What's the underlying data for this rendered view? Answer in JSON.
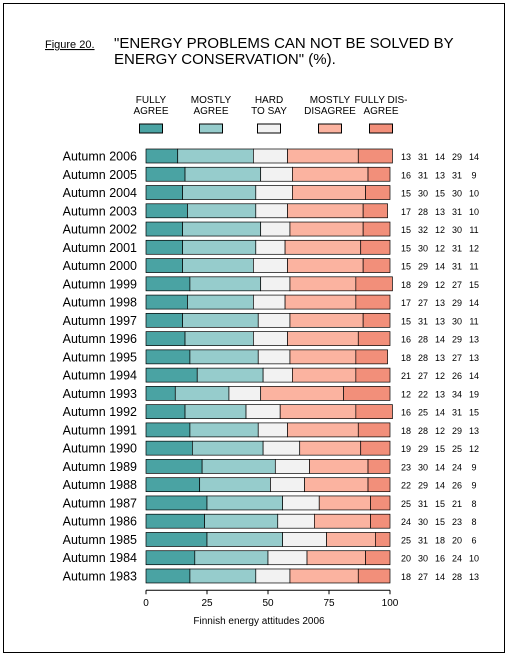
{
  "figure_label": "Figure 20.",
  "title_lines": [
    "\"ENERGY PROBLEMS CAN NOT BE SOLVED BY",
    "ENERGY CONSERVATION\" (%)."
  ],
  "chart_data": {
    "type": "bar",
    "orientation": "horizontal",
    "stacked": true,
    "title": "\"ENERGY PROBLEMS CAN NOT BE SOLVED BY ENERGY CONSERVATION\" (%).",
    "xlabel": "Finnish energy attitudes 2006",
    "xlim": [
      0,
      100
    ],
    "xticks": [
      0,
      25,
      50,
      75,
      100
    ],
    "legend_position": "top",
    "categories": [
      "Autumn 2006",
      "Autumn 2005",
      "Autumn 2004",
      "Autumn 2003",
      "Autumn 2002",
      "Autumn 2001",
      "Autumn 2000",
      "Autumn 1999",
      "Autumn 1998",
      "Autumn 1997",
      "Autumn 1996",
      "Autumn 1995",
      "Autumn 1994",
      "Autumn 1993",
      "Autumn 1992",
      "Autumn 1991",
      "Autumn 1990",
      "Autumn 1989",
      "Autumn 1988",
      "Autumn 1987",
      "Autumn 1986",
      "Autumn 1985",
      "Autumn 1984",
      "Autumn 1983"
    ],
    "series": [
      {
        "name": "FULLY AGREE",
        "label_lines": [
          "FULLY",
          "AGREE"
        ],
        "color": "#4aa3a3",
        "values": [
          13,
          16,
          15,
          17,
          15,
          15,
          15,
          18,
          17,
          15,
          16,
          18,
          21,
          12,
          16,
          18,
          19,
          23,
          22,
          25,
          24,
          25,
          20,
          18
        ]
      },
      {
        "name": "MOSTLY AGREE",
        "label_lines": [
          "MOSTLY",
          "AGREE"
        ],
        "color": "#96cccc",
        "values": [
          31,
          31,
          30,
          28,
          32,
          30,
          29,
          29,
          27,
          31,
          28,
          28,
          27,
          22,
          25,
          28,
          29,
          30,
          29,
          31,
          30,
          31,
          30,
          27
        ]
      },
      {
        "name": "HARD TO SAY",
        "label_lines": [
          "HARD",
          "TO SAY"
        ],
        "color": "#f2f2f2",
        "values": [
          14,
          13,
          15,
          13,
          12,
          12,
          14,
          12,
          13,
          13,
          14,
          13,
          12,
          13,
          14,
          12,
          15,
          14,
          14,
          15,
          15,
          18,
          16,
          14
        ]
      },
      {
        "name": "MOSTLY DISAGREE",
        "label_lines": [
          "MOSTLY",
          "DISAGREE"
        ],
        "color": "#fbb3a0",
        "values": [
          29,
          31,
          30,
          31,
          30,
          31,
          31,
          27,
          29,
          30,
          29,
          27,
          26,
          34,
          31,
          29,
          25,
          24,
          26,
          21,
          23,
          20,
          24,
          28
        ]
      },
      {
        "name": "FULLY DISAGREE",
        "label_lines": [
          "FULLY DIS-",
          "AGREE"
        ],
        "color": "#f28f7a",
        "values": [
          14,
          9,
          10,
          10,
          11,
          12,
          11,
          15,
          14,
          11,
          13,
          13,
          14,
          19,
          15,
          13,
          12,
          9,
          9,
          8,
          8,
          6,
          10,
          13
        ]
      }
    ]
  }
}
